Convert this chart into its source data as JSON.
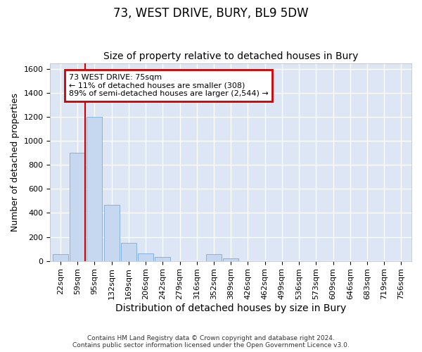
{
  "title": "73, WEST DRIVE, BURY, BL9 5DW",
  "subtitle": "Size of property relative to detached houses in Bury",
  "xlabel": "Distribution of detached houses by size in Bury",
  "ylabel": "Number of detached properties",
  "footer_line1": "Contains HM Land Registry data © Crown copyright and database right 2024.",
  "footer_line2": "Contains public sector information licensed under the Open Government Licence v3.0.",
  "categories": [
    "22sqm",
    "59sqm",
    "95sqm",
    "132sqm",
    "169sqm",
    "206sqm",
    "242sqm",
    "279sqm",
    "316sqm",
    "352sqm",
    "389sqm",
    "426sqm",
    "462sqm",
    "499sqm",
    "536sqm",
    "573sqm",
    "609sqm",
    "646sqm",
    "683sqm",
    "719sqm",
    "756sqm"
  ],
  "bar_values": [
    55,
    900,
    1200,
    470,
    150,
    60,
    30,
    0,
    0,
    55,
    20,
    0,
    0,
    0,
    0,
    0,
    0,
    0,
    0,
    0,
    0
  ],
  "bar_color": "#c5d8f0",
  "bar_edge_color": "#7aaadd",
  "background_color": "#dce6f5",
  "grid_color": "#ffffff",
  "ylim": [
    0,
    1650
  ],
  "yticks": [
    0,
    200,
    400,
    600,
    800,
    1000,
    1200,
    1400,
    1600
  ],
  "annotation_line1": "73 WEST DRIVE: 75sqm",
  "annotation_line2": "← 11% of detached houses are smaller (308)",
  "annotation_line3": "89% of semi-detached houses are larger (2,544) →",
  "annotation_box_color": "#ffffff",
  "annotation_box_edge": "#cc0000",
  "vline_color": "#cc0000",
  "title_fontsize": 12,
  "subtitle_fontsize": 10,
  "xlabel_fontsize": 10,
  "ylabel_fontsize": 9,
  "tick_fontsize": 8,
  "annotation_fontsize": 8
}
